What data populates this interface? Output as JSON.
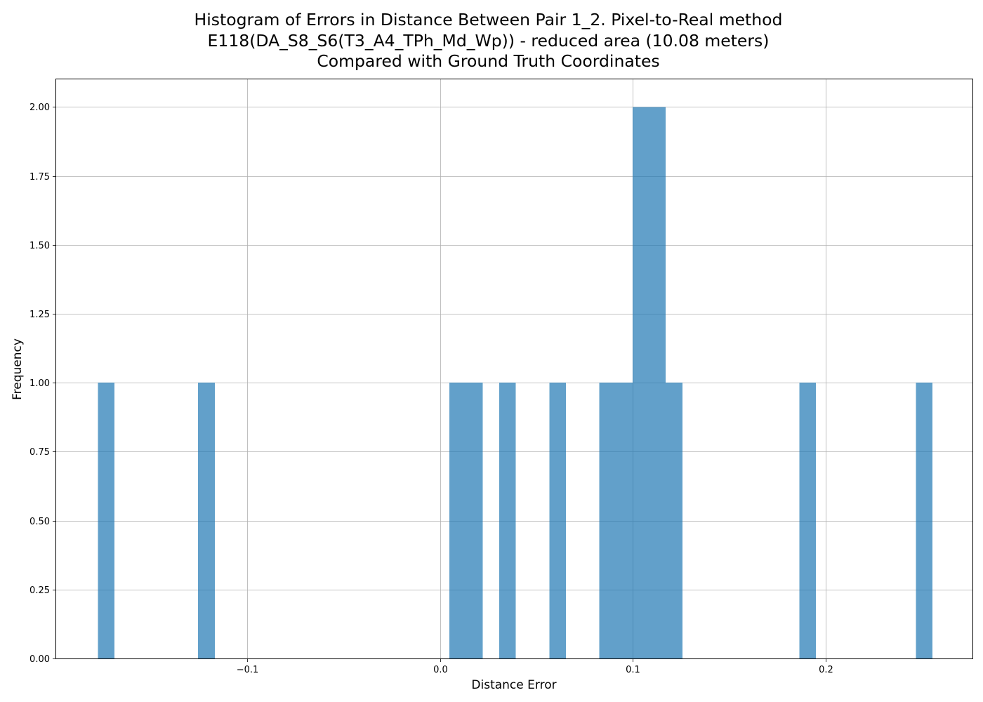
{
  "chart_data": {
    "type": "bar",
    "title_lines": [
      "Histogram of Errors in Distance Between Pair 1_2. Pixel-to-Real method",
      "E118(DA_S8_S6(T3_A4_TPh_Md_Wp)) - reduced area (10.08 meters)",
      "Compared with Ground Truth Coordinates"
    ],
    "xlabel": "Distance Error",
    "ylabel": "Frequency",
    "xlim": [
      -0.199,
      0.276
    ],
    "ylim": [
      0,
      2.1
    ],
    "x_ticks": [
      {
        "value": -0.1,
        "label": "−0.1"
      },
      {
        "value": 0.0,
        "label": "0.0"
      },
      {
        "value": 0.1,
        "label": "0.1"
      },
      {
        "value": 0.2,
        "label": "0.2"
      }
    ],
    "y_ticks": [
      {
        "value": 0.0,
        "label": "0.00"
      },
      {
        "value": 0.25,
        "label": "0.25"
      },
      {
        "value": 0.5,
        "label": "0.50"
      },
      {
        "value": 0.75,
        "label": "0.75"
      },
      {
        "value": 1.0,
        "label": "1.00"
      },
      {
        "value": 1.25,
        "label": "1.25"
      },
      {
        "value": 1.5,
        "label": "1.50"
      },
      {
        "value": 1.75,
        "label": "1.75"
      },
      {
        "value": 2.0,
        "label": "2.00"
      }
    ],
    "grid": true,
    "bar_color": "#1f77b4",
    "bar_opacity": 0.7,
    "bins": [
      {
        "x0": -0.1773,
        "x1": -0.1687,
        "count": 1
      },
      {
        "x0": -0.1254,
        "x1": -0.1168,
        "count": 1
      },
      {
        "x0": 0.0049,
        "x1": 0.0135,
        "count": 1
      },
      {
        "x0": 0.0135,
        "x1": 0.0221,
        "count": 1
      },
      {
        "x0": 0.0307,
        "x1": 0.0393,
        "count": 1
      },
      {
        "x0": 0.0567,
        "x1": 0.0653,
        "count": 1
      },
      {
        "x0": 0.0826,
        "x1": 0.0912,
        "count": 1
      },
      {
        "x0": 0.0912,
        "x1": 0.0998,
        "count": 1
      },
      {
        "x0": 0.0998,
        "x1": 0.1084,
        "count": 2
      },
      {
        "x0": 0.1084,
        "x1": 0.117,
        "count": 2
      },
      {
        "x0": 0.117,
        "x1": 0.1256,
        "count": 1
      },
      {
        "x0": 0.1862,
        "x1": 0.1948,
        "count": 1
      },
      {
        "x0": 0.2467,
        "x1": 0.2553,
        "count": 1
      }
    ]
  }
}
